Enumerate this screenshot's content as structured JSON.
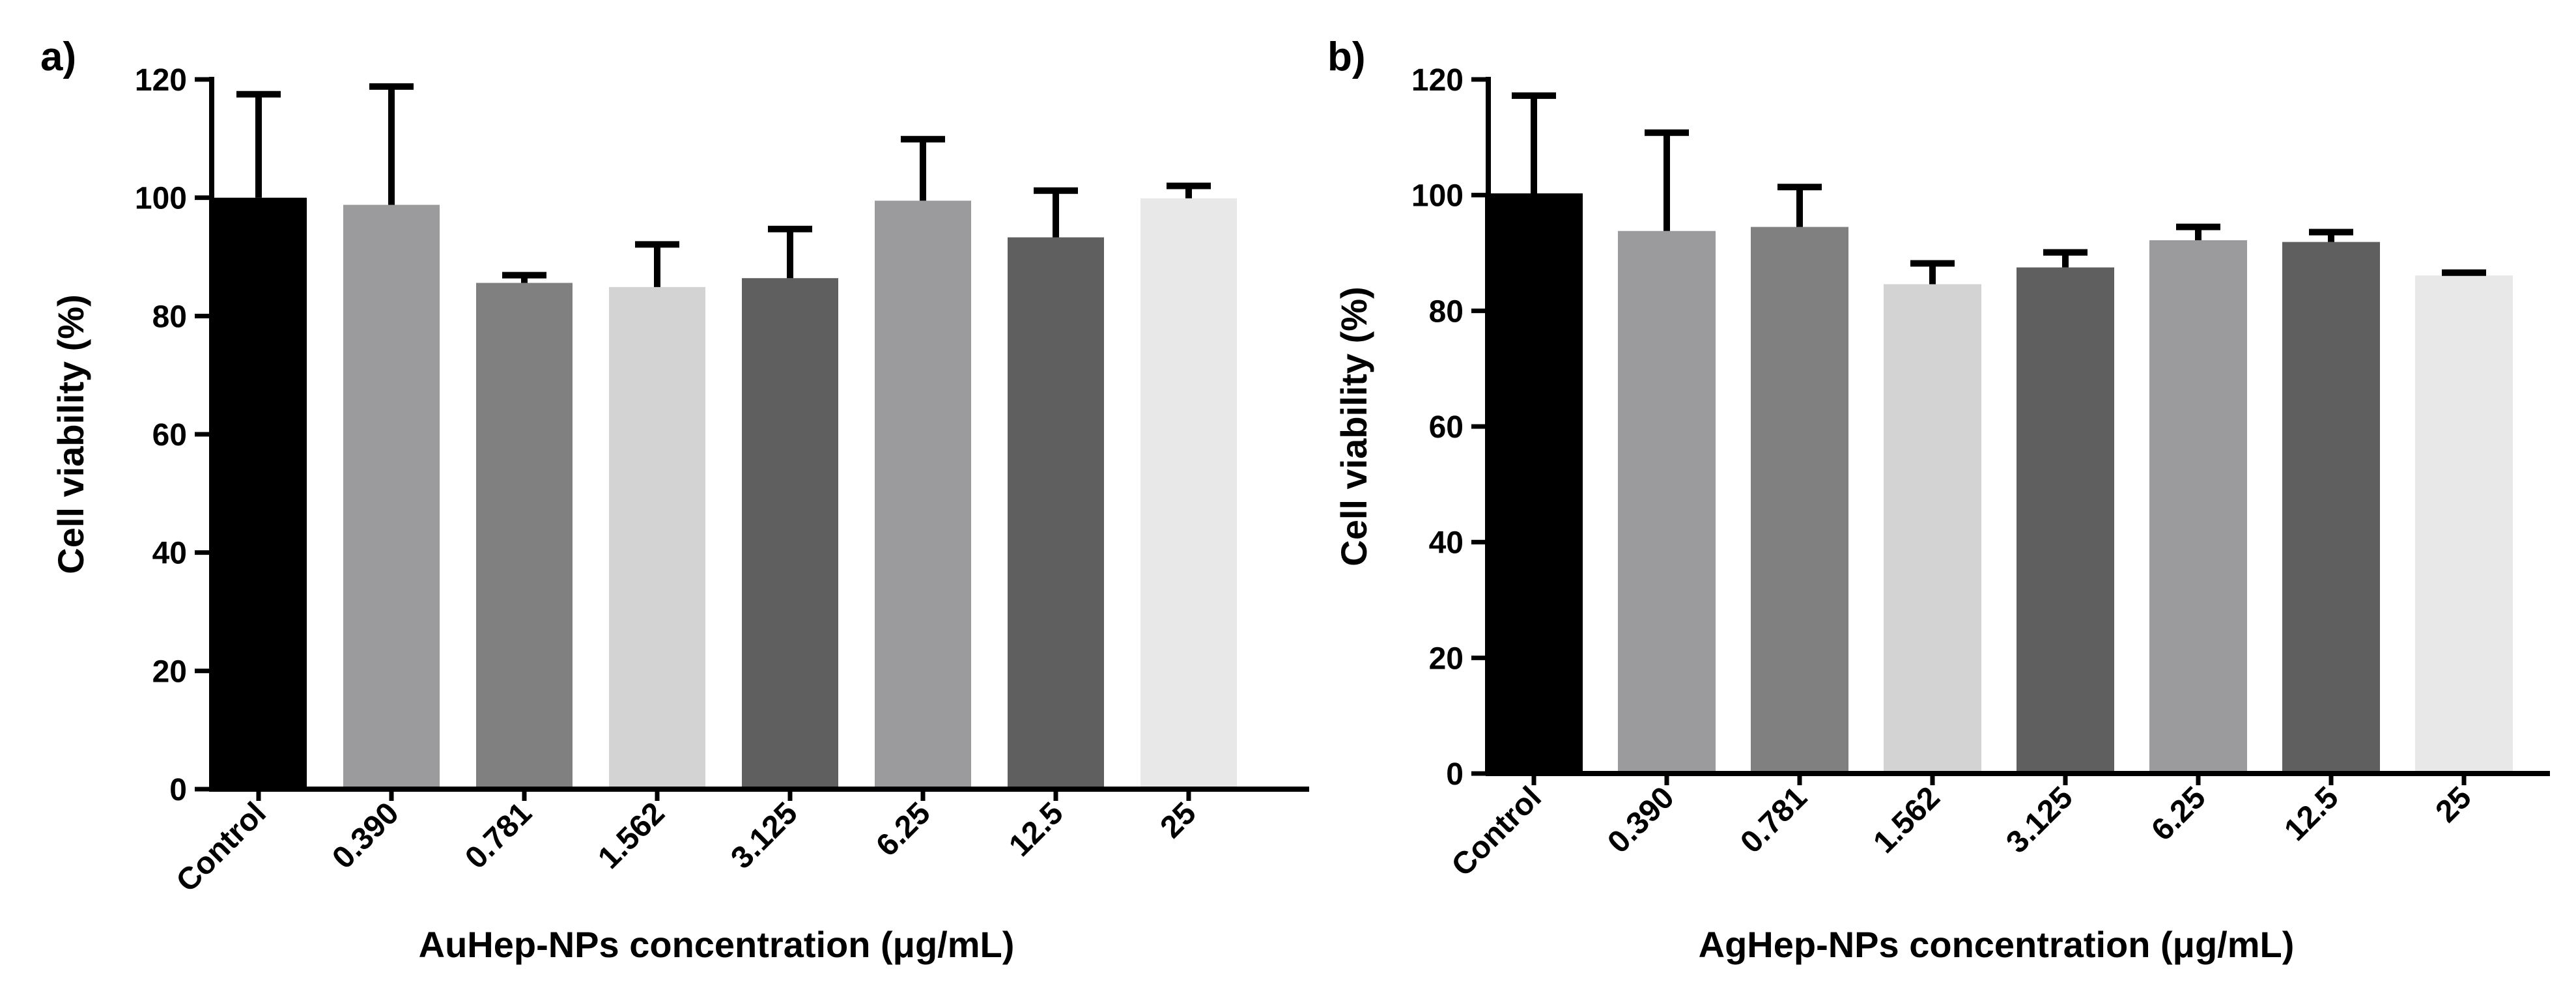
{
  "chart_data": [
    {
      "type": "bar",
      "panel_label": "a)",
      "title": "",
      "categories": [
        "Control",
        "0.390",
        "0.781",
        "1.562",
        "3.125",
        "6.25",
        "12.5",
        "25"
      ],
      "values": [
        100,
        98.8,
        85.6,
        84.9,
        86.4,
        99.5,
        93.3,
        99.9
      ],
      "error_bars": [
        17.5,
        20,
        1.3,
        7.2,
        8.3,
        10.4,
        7.9,
        2.1
      ],
      "bar_colors": [
        "#000000",
        "#9b9b9e",
        "#808080",
        "#d3d3d3",
        "#5f5f5f",
        "#9b9b9e",
        "#5f5f5f",
        "#e8e8e8"
      ],
      "xlabel": "AuHep-NPs concentration (μg/mL)",
      "ylabel": "Cell viability (%)",
      "ylim": [
        0,
        120
      ],
      "yticks": [
        "0",
        "20",
        "40",
        "60",
        "80",
        "100",
        "120"
      ],
      "grid": false,
      "legend": "none"
    },
    {
      "type": "bar",
      "panel_label": "b)",
      "title": "",
      "categories": [
        "Control",
        "0.390",
        "0.781",
        "1.562",
        "3.125",
        "6.25",
        "12.5",
        "25"
      ],
      "values": [
        100.3,
        93.8,
        94.5,
        84.6,
        87.5,
        92.2,
        91.9,
        86.1
      ],
      "error_bars": [
        16.9,
        17,
        6.9,
        3.6,
        2.6,
        2.3,
        1.7,
        0.5
      ],
      "bar_colors": [
        "#000000",
        "#9b9b9e",
        "#808080",
        "#d3d3d3",
        "#5f5f5f",
        "#9b9b9e",
        "#5f5f5f",
        "#e8e8e8"
      ],
      "xlabel": "AgHep-NPs concentration (μg/mL)",
      "ylabel": "Cell viability (%)",
      "ylim": [
        0,
        120
      ],
      "yticks": [
        "0",
        "20",
        "40",
        "60",
        "80",
        "100",
        "120"
      ],
      "grid": false,
      "legend": "none"
    }
  ]
}
